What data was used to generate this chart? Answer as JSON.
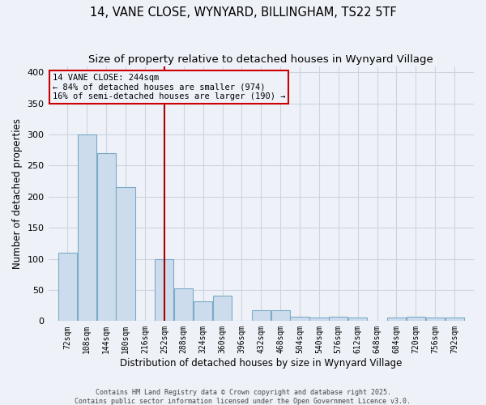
{
  "title1": "14, VANE CLOSE, WYNYARD, BILLINGHAM, TS22 5TF",
  "title2": "Size of property relative to detached houses in Wynyard Village",
  "xlabel": "Distribution of detached houses by size in Wynyard Village",
  "ylabel": "Number of detached properties",
  "footer": "Contains HM Land Registry data © Crown copyright and database right 2025.\nContains public sector information licensed under the Open Government Licence v3.0.",
  "annotation_title": "14 VANE CLOSE: 244sqm",
  "annotation_line1": "← 84% of detached houses are smaller (974)",
  "annotation_line2": "16% of semi-detached houses are larger (190) →",
  "categories": [
    72,
    108,
    144,
    180,
    216,
    252,
    288,
    324,
    360,
    396,
    432,
    468,
    504,
    540,
    576,
    612,
    648,
    684,
    720,
    756,
    792
  ],
  "values": [
    110,
    300,
    270,
    215,
    0,
    100,
    52,
    32,
    41,
    0,
    18,
    18,
    7,
    5,
    7,
    5,
    0,
    5,
    7,
    5,
    5
  ],
  "bar_color": "#ccdcec",
  "bar_edge_color": "#7aaac8",
  "vline_color": "#aa0000",
  "vline_x": 252,
  "ylim": [
    0,
    410
  ],
  "yticks": [
    0,
    50,
    100,
    150,
    200,
    250,
    300,
    350,
    400
  ],
  "grid_color": "#ccd4e0",
  "background_color": "#eef2f8",
  "box_edge_color": "#cc0000",
  "title_fontsize": 10.5,
  "subtitle_fontsize": 9.5,
  "annotation_fontsize": 7.5,
  "footer_fontsize": 6.0
}
